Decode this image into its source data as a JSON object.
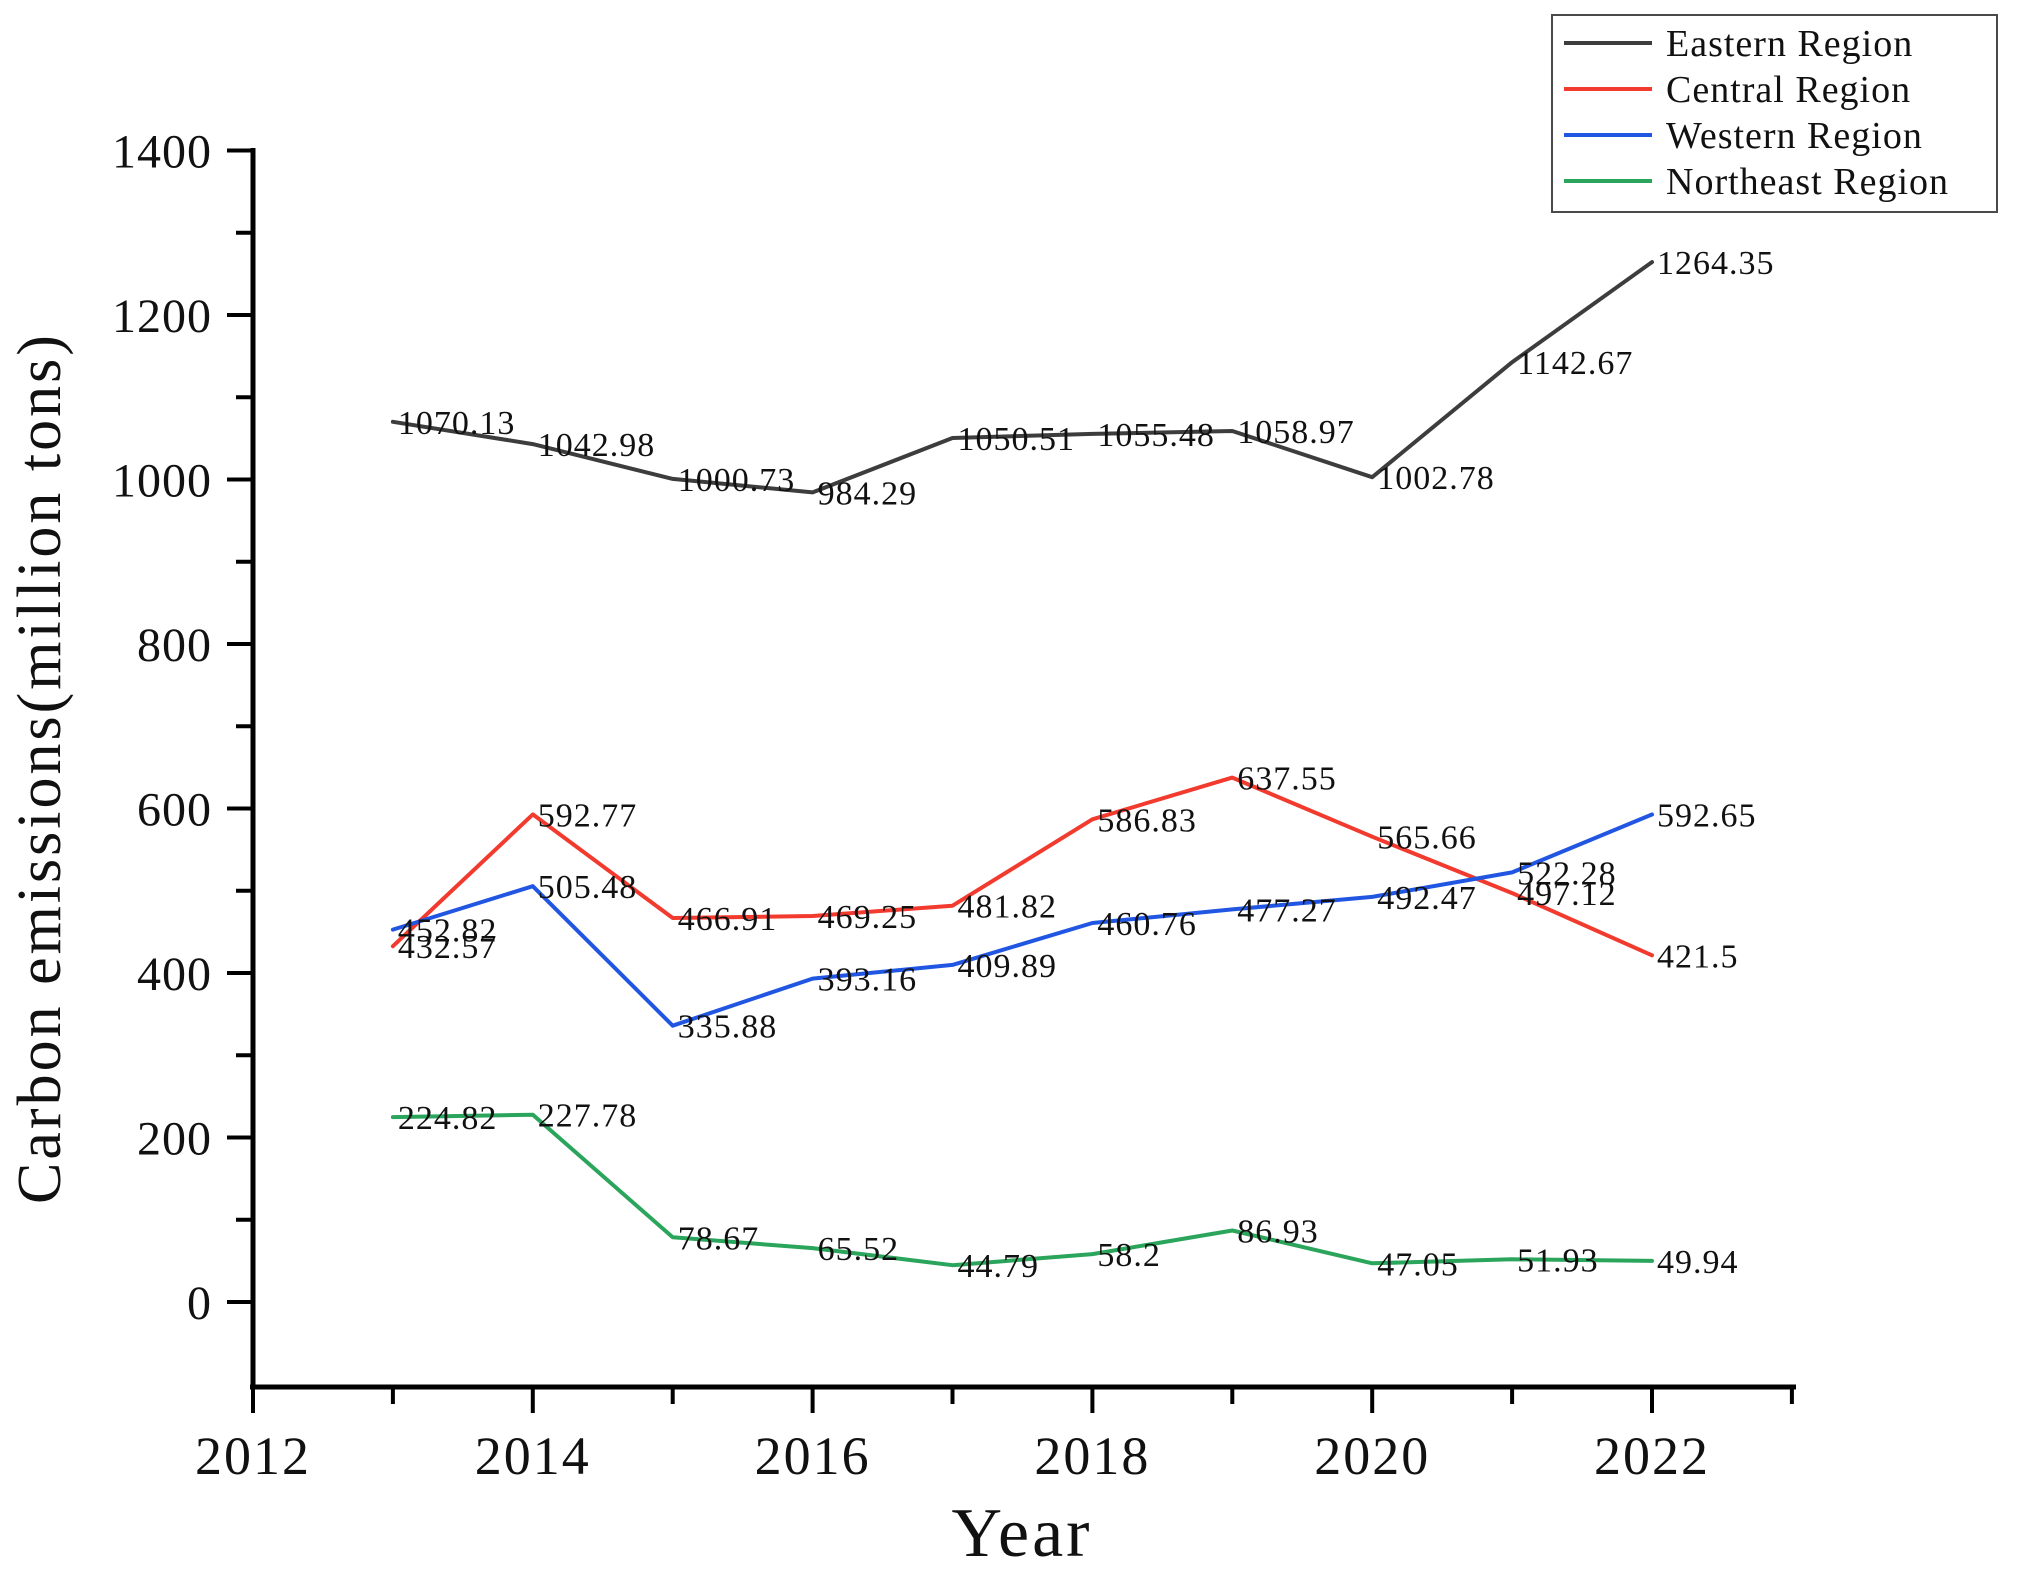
{
  "chart_data": {
    "type": "line",
    "title": "",
    "xlabel": "Year",
    "ylabel": "Carbon emissions(million tons)",
    "x": [
      2013,
      2014,
      2015,
      2016,
      2017,
      2018,
      2019,
      2020,
      2021,
      2022
    ],
    "series": [
      {
        "name": "Eastern Region",
        "color": "#3d3d3d",
        "values": [
          1070.13,
          1042.98,
          1000.73,
          984.29,
          1050.51,
          1055.48,
          1058.97,
          1002.78,
          1142.67,
          1264.35
        ]
      },
      {
        "name": "Central Region",
        "color": "#f23a2e",
        "values": [
          432.57,
          592.77,
          466.91,
          469.25,
          481.82,
          586.83,
          637.55,
          565.66,
          497.12,
          421.5
        ]
      },
      {
        "name": "Western Region",
        "color": "#2156e2",
        "values": [
          452.82,
          505.48,
          335.88,
          393.16,
          409.89,
          460.76,
          477.27,
          492.47,
          522.28,
          592.65
        ]
      },
      {
        "name": "Northeast Region",
        "color": "#2ba55c",
        "values": [
          224.82,
          227.78,
          78.67,
          65.52,
          44.79,
          58.2,
          86.93,
          47.05,
          51.93,
          49.94
        ]
      }
    ],
    "xticks_major": [
      2012,
      2014,
      2016,
      2018,
      2020,
      2022
    ],
    "xticks_minor": [
      2013,
      2015,
      2017,
      2019,
      2021,
      2023
    ],
    "yticks_major": [
      0,
      200,
      400,
      600,
      800,
      1000,
      1200,
      1400
    ],
    "yticks_minor": [
      100,
      300,
      500,
      700,
      900,
      1100,
      1300
    ],
    "xlim": [
      2012,
      2023
    ],
    "ylim": [
      -104,
      1400
    ],
    "grid": false,
    "point_labels": true,
    "legend_position": "upper right",
    "text_color": "#111111",
    "axis_color": "#000000"
  }
}
